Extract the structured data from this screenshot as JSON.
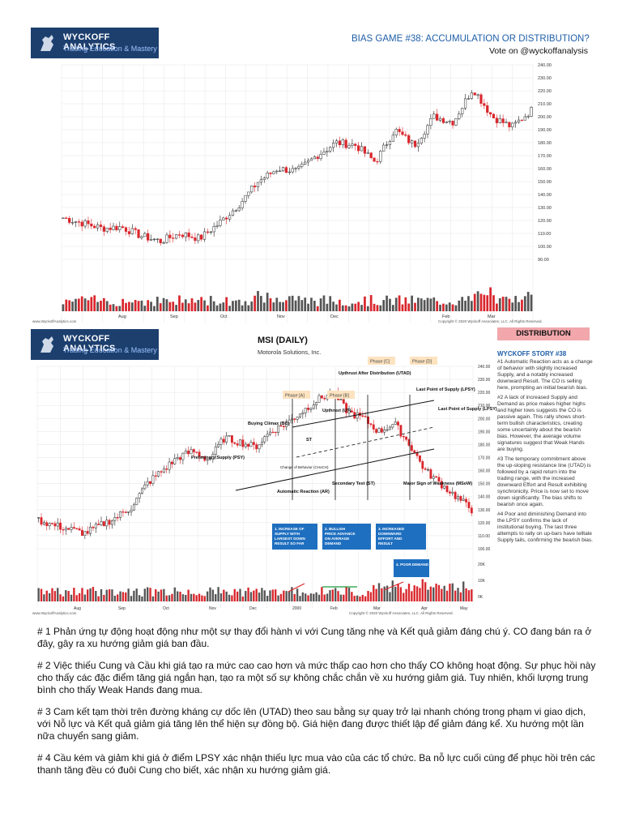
{
  "panel1": {
    "logo_title": "WYCKOFF ANALYTICS",
    "logo_subtitle": "Trading Education & Mastery",
    "title": "BIAS GAME #38: ACCUMULATION OR DISTRIBUTION?",
    "vote": "Vote on @wyckoffanalysis",
    "y_ticks": [
      "240.00",
      "230.00",
      "220.00",
      "210.00",
      "200.00",
      "190.00",
      "180.00",
      "170.00",
      "160.00",
      "150.00",
      "140.00",
      "130.00",
      "120.00",
      "110.00",
      "100.00",
      "90.00"
    ],
    "x_ticks": [
      "Aug",
      "Sep",
      "Oct",
      "Nov",
      "Dec",
      "Feb",
      "Mar"
    ],
    "footer_left": "www.WyckoffAnalytics.com",
    "footer_right": "Copyright © 2020 Wyckoff Associates, LLC. All Rights Reserved."
  },
  "panel2": {
    "logo_title": "WYCKOFF ANALYTICS",
    "logo_subtitle": "Trading Education & Mastery",
    "title": "MSI (DAILY)",
    "subtitle": "Motorola Solutions, Inc.",
    "y_ticks": [
      "240.00",
      "230.00",
      "220.00",
      "210.00",
      "200.00",
      "190.00",
      "180.00",
      "170.00",
      "160.00",
      "150.00",
      "140.00",
      "130.00",
      "120.00",
      "110.00",
      "100.00"
    ],
    "vol_ticks": [
      "20K",
      "10K",
      "0K"
    ],
    "x_ticks": [
      "Aug",
      "Sep",
      "Oct",
      "Nov",
      "Dec",
      "2000",
      "Feb",
      "Mar",
      "Apr",
      "May"
    ],
    "phases": [
      "Phase [A]",
      "Phase [B]",
      "Phase [C]",
      "Phase [D]"
    ],
    "labels": {
      "utad": "Upthrust After Distribution (UTAD)",
      "lpsy1": "Last Point of Supply (LPSY)",
      "lpsy2": "Last Point of Supply (LPSY)",
      "ut": "Upthrust (UT)",
      "bc": "Buying Climax (BC)",
      "st": "ST",
      "psy": "Preliminary Supply (PSY)",
      "coc": "Change of Behavior (CHoCH)",
      "ar": "Automatic Reaction (AR)",
      "st2": "Secondary Test (ST)",
      "msow": "Major Sign of Weakness (MSoW)"
    },
    "boxes": [
      "1. INCREASE OF SUPPLY WITH LARGEST DOWN RESULT SO FAR",
      "2. BULLISH PRICE ADVANCE ON AVERAGE DEMAND",
      "3. INCREASED DOWNWARD EFFORT AND RESULT",
      "4. POOR DEMAND"
    ],
    "footer_left": "www.WyckoffAnalytics.com",
    "footer_right": "Copyright © 2020 Wyckoff Associates, LLC. All Rights Reserved."
  },
  "story": {
    "badge": "DISTRIBUTION",
    "title": "WYCKOFF STORY #38",
    "paragraphs": [
      "#1 Automatic Reaction acts as a change of behavior with slightly increased Supply, and a notably increased downward Result. The CO is selling here, prompting an initial bearish bias.",
      "#2 A lack of increased Supply and Demand as price makes higher highs and higher lows suggests the CO is passive again. This rally shows short-term bullish characteristics, creating some uncertainty about the bearish bias. However, the average volume signatures suggest that Weak Hands are buying.",
      "#3 The temporary commitment above the up-sloping resistance line (UTAD) is followed by a rapid return into the trading range, with the increased downward Effort and Result exhibiting synchronicity. Price is now set to move down significantly. The bias shifts to bearish once again.",
      "#4 Poor and diminishing Demand into the LPSY confirms the lack of institutional buying. The last three attempts to rally on up-bars have telltale Supply tails, confirming the bearish bias."
    ]
  },
  "vietnamese": [
    "# 1 Phản ứng tự động hoạt động như một sự thay đổi hành vi với Cung tăng nhẹ và Kết quả giảm đáng chú ý. CO đang bán ra ở đây, gây ra xu hướng giảm giá ban đầu.",
    "# 2 Việc thiếu Cung và Cầu khi giá tạo ra mức cao cao hơn và mức thấp cao hơn cho thấy CO không hoạt động. Sự phục hồi này cho thấy các đặc điểm tăng giá ngắn hạn, tạo ra một số sự không chắc chắn về xu hướng giảm giá. Tuy nhiên, khối lượng trung bình cho thấy Weak Hands đang mua.",
    "# 3 Cam kết tạm thời trên đường kháng cự dốc lên (UTAD) theo sau bằng sự quay trở lại nhanh chóng trong phạm vi giao dịch, với Nỗ lực và Kết quả giảm giá tăng lên thể hiện sự đồng bộ. Giá hiện đang được thiết lập để giảm đáng kể. Xu hướng một lần nữa chuyển sang giảm.",
    "# 4 Cầu kém và giảm khi giá ở điểm LPSY xác nhận thiếu lực mua vào của các tổ chức. Ba nỗ lực cuối cùng để phục hồi trên các thanh tăng đều có đuôi Cung cho biết, xác nhận xu hướng giảm giá."
  ],
  "colors": {
    "navy": "#1c3f6e",
    "blue_box": "#1f6fc0",
    "up": "#222222",
    "down": "#d9262c",
    "grid": "#e6e6e6",
    "badge": "#f1a7ab",
    "phase": "#fde3c0"
  }
}
